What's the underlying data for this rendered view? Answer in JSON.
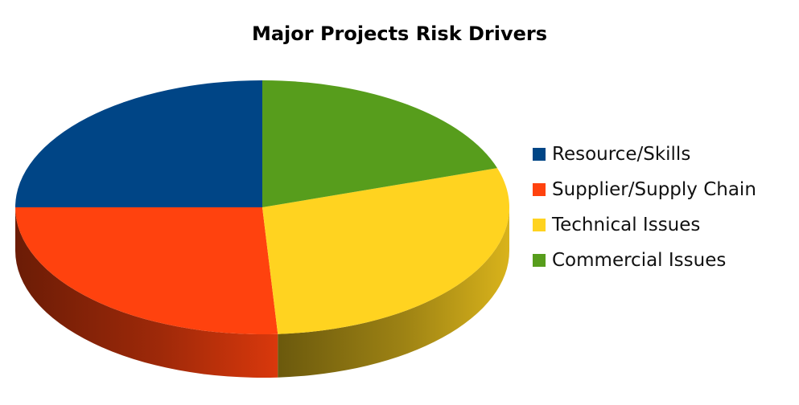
{
  "chart_data": {
    "type": "pie",
    "title": "Major Projects Risk Drivers",
    "legend_position": "right",
    "slices": [
      {
        "label": "Resource/Skills",
        "value": 25,
        "color": "#004586"
      },
      {
        "label": "Supplier/Supply Chain",
        "value": 26,
        "color": "#ff420e"
      },
      {
        "label": "Technical Issues",
        "value": 29,
        "color": "#ffd320"
      },
      {
        "label": "Commercial Issues",
        "value": 20,
        "color": "#579d1c"
      }
    ]
  }
}
